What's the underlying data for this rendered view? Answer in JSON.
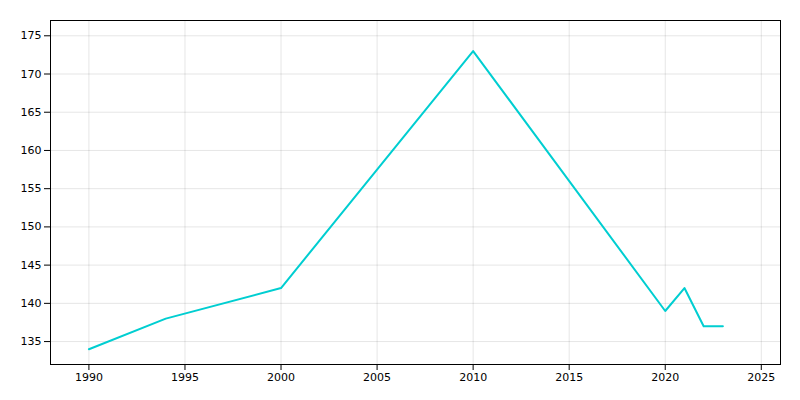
{
  "chart_data": {
    "type": "line",
    "x": [
      1990,
      1994,
      2000,
      2010,
      2020,
      2021,
      2022,
      2023
    ],
    "values": [
      134,
      138,
      142,
      173,
      139,
      142,
      137,
      137
    ],
    "color": "#00CED1",
    "xlim": [
      1988,
      2026
    ],
    "ylim": [
      132,
      177
    ],
    "xticks": [
      1990,
      1995,
      2000,
      2005,
      2010,
      2015,
      2020,
      2025
    ],
    "yticks": [
      135,
      140,
      145,
      150,
      155,
      160,
      165,
      170,
      175
    ],
    "grid": true
  }
}
